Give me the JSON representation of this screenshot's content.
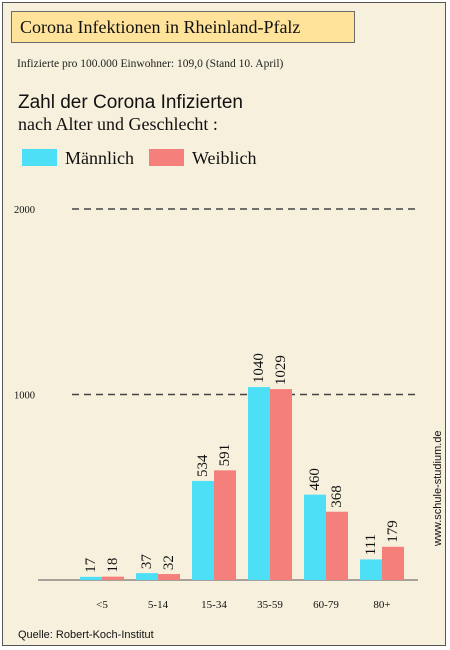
{
  "title": "Corona Infektionen in Rheinland-Pfalz",
  "subtitle": "Infizierte pro 100.000 Einwohner: 109,0 (Stand 10. April)",
  "heading_line1": "Zahl der Corona Infizierten",
  "heading_line2": "nach Alter und Geschlecht :",
  "watermark": "www.schule-studium.de",
  "source": "Quelle: Robert-Koch-Institut",
  "colors": {
    "maennlich": "#4ddff6",
    "weiblich": "#f47f7b"
  },
  "chart_data": {
    "type": "bar",
    "categories": [
      "<5",
      "5-14",
      "15-34",
      "35-59",
      "60-79",
      "80+"
    ],
    "series": [
      {
        "name": "Männlich",
        "values": [
          17,
          37,
          534,
          1040,
          460,
          111
        ]
      },
      {
        "name": "Weiblich",
        "values": [
          18,
          32,
          591,
          1029,
          368,
          179
        ]
      }
    ],
    "yticks": [
      1000,
      2000
    ],
    "ylim": [
      0,
      2000
    ],
    "grid": "dashed",
    "legend_position": "top-left"
  }
}
